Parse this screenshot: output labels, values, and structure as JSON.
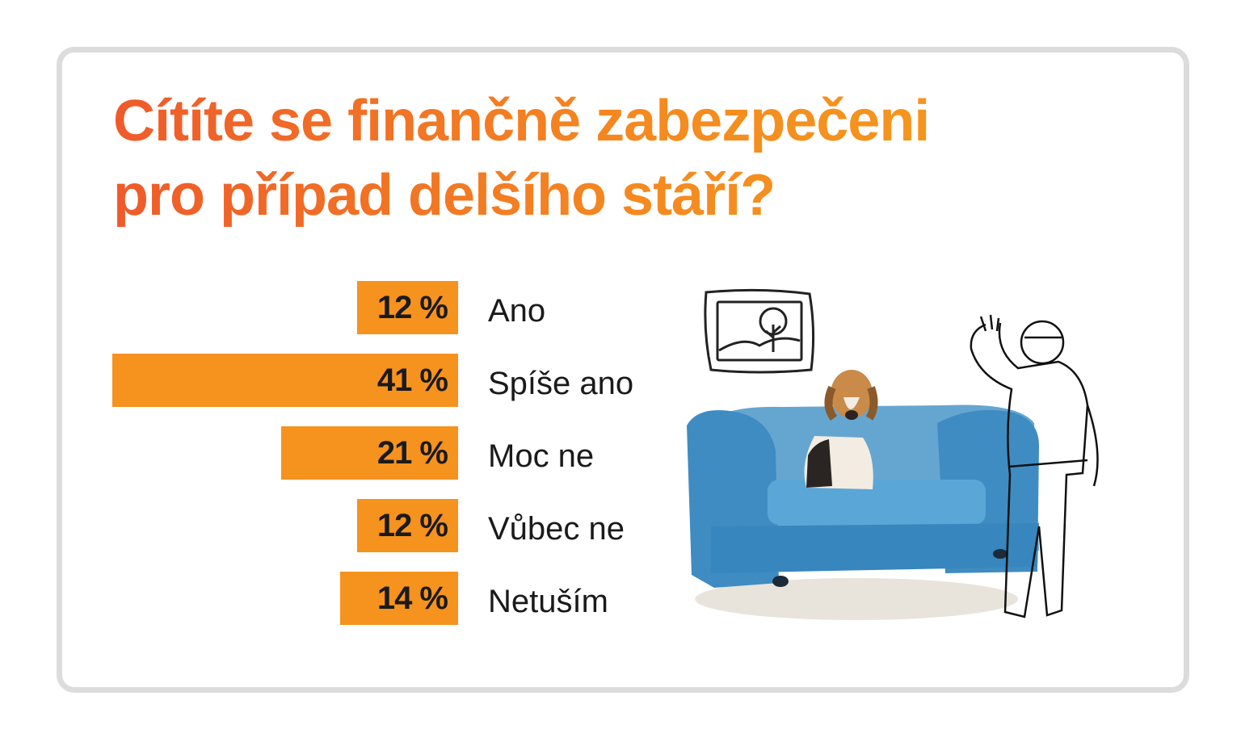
{
  "chart_data": {
    "type": "bar",
    "orientation": "horizontal",
    "title_lines": [
      "Cítíte se finančně zabezpečeni",
      "pro případ delšího stáří?"
    ],
    "categories": [
      "Ano",
      "Spíše ano",
      "Moc ne",
      "Vůbec ne",
      "Netuším"
    ],
    "values": [
      12,
      41,
      21,
      12,
      14
    ],
    "value_labels": [
      "12 %",
      "41 %",
      "21 %",
      "12 %",
      "14 %"
    ],
    "unit": "%",
    "xlim": [
      0,
      41
    ],
    "bar_color": "#f6921e",
    "title_gradient": [
      "#ef5a2a",
      "#f59b1d"
    ],
    "grid": false,
    "legend": "none"
  },
  "illustration": {
    "elements": [
      "framed-tree-picture",
      "blue-sofa",
      "beagle-dog",
      "waving-man"
    ],
    "sofa_color": "#4a97c9"
  }
}
